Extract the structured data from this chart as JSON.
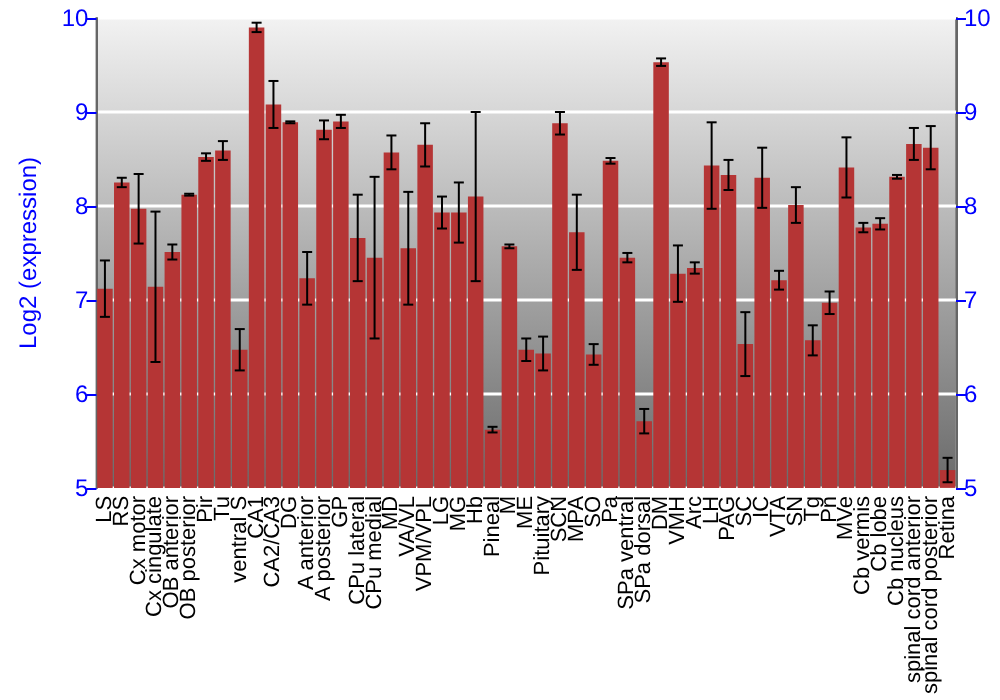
{
  "chart_data": {
    "type": "bar",
    "ylabel": "Log2 (expression)",
    "categories": [
      "LS",
      "RS",
      "Cx motor",
      "Cx cingulate",
      "OB anterior",
      "OB posterior",
      "Pir",
      "Tu",
      "ventral S",
      "CA1",
      "CA2/CA3",
      "DG",
      "A anterior",
      "A posterior",
      "GP",
      "CPu lateral",
      "CPu medial",
      "MD",
      "VA/VL",
      "VPM/VPL",
      "LG",
      "MG",
      "Hb",
      "Pineal",
      "M",
      "ME",
      "Pituitary",
      "SCN",
      "MPA",
      "SO",
      "Pa",
      "SPa ventral",
      "SPa dorsal",
      "DM",
      "VMH",
      "Arc",
      "LH",
      "PAG",
      "SC",
      "IC",
      "VTA",
      "SN",
      "Tg",
      "Pn",
      "MVe",
      "Cb vermis",
      "Cb lobe",
      "Cb nucleus",
      "spinal cord anterior",
      "spinal cord posterior",
      "Retina"
    ],
    "values": [
      7.12,
      8.25,
      7.97,
      7.14,
      7.51,
      8.12,
      8.52,
      8.59,
      6.47,
      9.9,
      9.08,
      8.89,
      7.23,
      8.81,
      8.9,
      7.66,
      7.45,
      8.57,
      7.55,
      8.65,
      7.93,
      7.93,
      8.1,
      5.62,
      7.57,
      6.47,
      6.43,
      8.88,
      7.72,
      6.42,
      8.48,
      7.45,
      5.71,
      9.53,
      7.28,
      7.34,
      8.43,
      8.33,
      6.53,
      8.3,
      7.21,
      8.01,
      6.57,
      6.97,
      8.41,
      7.77,
      7.81,
      8.31,
      8.66,
      8.62,
      5.19
    ],
    "errors": [
      0.3,
      0.05,
      0.37,
      0.8,
      0.08,
      0.01,
      0.04,
      0.1,
      0.22,
      0.05,
      0.25,
      0.01,
      0.28,
      0.1,
      0.07,
      0.46,
      0.86,
      0.18,
      0.6,
      0.23,
      0.17,
      0.32,
      0.9,
      0.03,
      0.02,
      0.12,
      0.18,
      0.12,
      0.4,
      0.11,
      0.03,
      0.05,
      0.13,
      0.04,
      0.3,
      0.06,
      0.46,
      0.16,
      0.34,
      0.32,
      0.1,
      0.19,
      0.16,
      0.12,
      0.32,
      0.05,
      0.06,
      0.02,
      0.17,
      0.23,
      0.13
    ],
    "color": "#b53535",
    "ylim": [
      5,
      10
    ],
    "yticks": [
      5,
      6,
      7,
      8,
      9,
      10
    ],
    "y2lim": [
      5,
      10
    ],
    "y2ticks": [
      5,
      6,
      7,
      8,
      9,
      10
    ],
    "grid": "y"
  }
}
